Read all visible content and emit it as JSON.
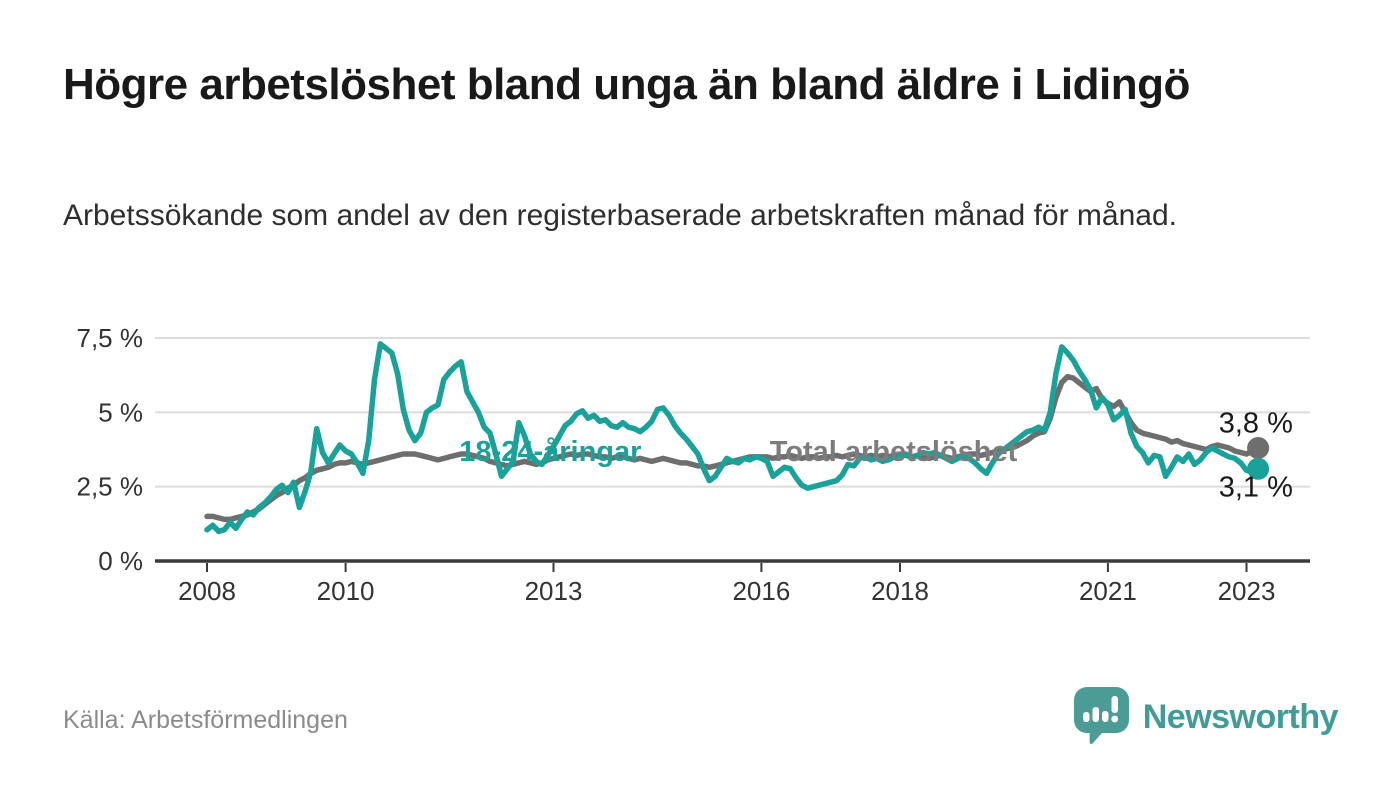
{
  "header": {
    "title": "Högre arbetslöshet bland unga än bland äldre i Lidingö",
    "subtitle": "Arbetssökande som andel av den registerbaserade arbetskraften månad för månad."
  },
  "footer": {
    "source": "Källa: Arbetsförmedlingen",
    "brand": "Newsworthy"
  },
  "colors": {
    "youth_line": "#18a29a",
    "total_line": "#6e6e6e",
    "total_label": "#7c7c7c",
    "value_label": "#1a1a1a",
    "grid": "#dcdcdc",
    "axis": "#3a3a3a",
    "tick_text": "#333333",
    "logo_bubble": "#4c9c96"
  },
  "chart_data": {
    "type": "line",
    "title": "Högre arbetslöshet bland unga än bland äldre i Lidingö",
    "subtitle": "Arbetssökande som andel av den registerbaserade arbetskraften månad för månad.",
    "unit": "%",
    "x_start_year": 2008,
    "x_step": "monthly",
    "xlim": [
      2007.25,
      2023.9
    ],
    "ylim": [
      0,
      7.5
    ],
    "grid": "horizontal",
    "legend_position": "inline-labels",
    "x_ticks": [
      2008,
      2010,
      2013,
      2016,
      2018,
      2021,
      2023
    ],
    "y_ticks": [
      {
        "value": 0,
        "label": "0 %"
      },
      {
        "value": 2.5,
        "label": "2,5 %"
      },
      {
        "value": 5,
        "label": "5 %"
      },
      {
        "value": 7.5,
        "label": "7,5 %"
      }
    ],
    "series": [
      {
        "name": "Total arbetslöshet",
        "color": "#6e6e6e",
        "end_label": "3,8 %",
        "end_value": 3.8,
        "values": [
          1.5,
          1.5,
          1.45,
          1.4,
          1.4,
          1.45,
          1.5,
          1.55,
          1.65,
          1.75,
          1.9,
          2.05,
          2.2,
          2.3,
          2.45,
          2.55,
          2.7,
          2.8,
          2.95,
          3.05,
          3.1,
          3.15,
          3.25,
          3.3,
          3.3,
          3.35,
          3.3,
          3.25,
          3.3,
          3.35,
          3.4,
          3.45,
          3.5,
          3.55,
          3.6,
          3.6,
          3.6,
          3.55,
          3.5,
          3.45,
          3.4,
          3.45,
          3.5,
          3.55,
          3.6,
          3.6,
          3.55,
          3.5,
          3.45,
          3.35,
          3.3,
          3.25,
          3.2,
          3.25,
          3.3,
          3.35,
          3.3,
          3.25,
          3.3,
          3.4,
          3.45,
          3.5,
          3.55,
          3.6,
          3.55,
          3.6,
          3.6,
          3.55,
          3.5,
          3.5,
          3.45,
          3.5,
          3.5,
          3.45,
          3.4,
          3.45,
          3.4,
          3.35,
          3.4,
          3.45,
          3.4,
          3.35,
          3.3,
          3.3,
          3.25,
          3.2,
          3.2,
          3.15,
          3.2,
          3.25,
          3.3,
          3.35,
          3.4,
          3.45,
          3.5,
          3.5,
          3.5,
          3.5,
          3.45,
          3.5,
          3.5,
          3.55,
          3.5,
          3.45,
          3.5,
          3.5,
          3.45,
          3.5,
          3.5,
          3.55,
          3.5,
          3.55,
          3.6,
          3.55,
          3.5,
          3.55,
          3.5,
          3.55,
          3.5,
          3.55,
          3.6,
          3.55,
          3.5,
          3.55,
          3.5,
          3.45,
          3.5,
          3.55,
          3.5,
          3.45,
          3.5,
          3.55,
          3.6,
          3.6,
          3.55,
          3.6,
          3.65,
          3.7,
          3.75,
          3.8,
          3.85,
          3.95,
          4.05,
          4.2,
          4.3,
          4.35,
          4.8,
          5.5,
          6.0,
          6.2,
          6.15,
          6.0,
          5.85,
          5.7,
          5.8,
          5.45,
          5.3,
          5.2,
          5.35,
          5.0,
          4.65,
          4.4,
          4.3,
          4.25,
          4.2,
          4.15,
          4.1,
          4.0,
          4.05,
          3.95,
          3.9,
          3.85,
          3.8,
          3.75,
          3.85,
          3.9,
          3.85,
          3.8,
          3.7,
          3.65,
          3.6,
          3.7,
          3.8
        ]
      },
      {
        "name": "18-24-åringar",
        "color": "#18a29a",
        "end_label": "3,1 %",
        "end_value": 3.1,
        "values": [
          1.05,
          1.2,
          1.0,
          1.05,
          1.3,
          1.1,
          1.4,
          1.65,
          1.55,
          1.8,
          1.95,
          2.15,
          2.4,
          2.55,
          2.3,
          2.65,
          1.8,
          2.35,
          3.0,
          4.45,
          3.65,
          3.3,
          3.6,
          3.9,
          3.7,
          3.6,
          3.3,
          2.95,
          4.05,
          6.1,
          7.3,
          7.15,
          7.0,
          6.3,
          5.1,
          4.4,
          4.05,
          4.3,
          5.0,
          5.15,
          5.25,
          6.1,
          6.35,
          6.55,
          6.7,
          5.7,
          5.35,
          5.0,
          4.5,
          4.3,
          3.6,
          2.85,
          3.1,
          3.35,
          4.65,
          4.2,
          3.6,
          3.35,
          3.25,
          3.55,
          3.85,
          4.2,
          4.55,
          4.7,
          4.95,
          5.05,
          4.8,
          4.9,
          4.7,
          4.75,
          4.55,
          4.5,
          4.65,
          4.5,
          4.45,
          4.35,
          4.5,
          4.7,
          5.1,
          5.15,
          4.9,
          4.55,
          4.3,
          4.1,
          3.85,
          3.6,
          3.1,
          2.7,
          2.85,
          3.15,
          3.45,
          3.35,
          3.3,
          3.45,
          3.4,
          3.5,
          3.45,
          3.35,
          2.85,
          3.0,
          3.15,
          3.1,
          2.8,
          2.55,
          2.45,
          2.5,
          2.55,
          2.6,
          2.65,
          2.7,
          2.9,
          3.25,
          3.2,
          3.45,
          3.5,
          3.4,
          3.45,
          3.35,
          3.4,
          3.5,
          3.55,
          3.6,
          3.45,
          3.55,
          3.65,
          3.6,
          3.65,
          3.55,
          3.45,
          3.35,
          3.45,
          3.5,
          3.45,
          3.3,
          3.1,
          2.95,
          3.3,
          3.6,
          3.75,
          3.9,
          4.05,
          4.2,
          4.35,
          4.4,
          4.5,
          4.4,
          5.0,
          6.3,
          7.2,
          7.0,
          6.75,
          6.4,
          6.1,
          5.75,
          5.15,
          5.5,
          5.25,
          4.75,
          4.9,
          5.1,
          4.3,
          3.85,
          3.65,
          3.3,
          3.55,
          3.5,
          2.85,
          3.15,
          3.5,
          3.35,
          3.6,
          3.25,
          3.4,
          3.65,
          3.8,
          3.7,
          3.6,
          3.5,
          3.45,
          3.3,
          3.05,
          3.0,
          3.1
        ]
      }
    ],
    "annotations": [
      {
        "text": "18-24-åringar",
        "x_year": 2011.64,
        "value": 3.36,
        "color": "#18a29a",
        "anchor": "start",
        "weight": "bold"
      },
      {
        "text": "Total arbetslöshet",
        "x_year": 2016.12,
        "value": 3.36,
        "color": "#7c7c7c",
        "anchor": "start",
        "weight": "bold"
      },
      {
        "text": "3,8 %",
        "x_year": 2023.67,
        "value": 4.32,
        "color": "#1a1a1a",
        "anchor": "end",
        "weight": "normal"
      },
      {
        "text": "3,1 %",
        "x_year": 2023.67,
        "value": 2.17,
        "color": "#1a1a1a",
        "anchor": "end",
        "weight": "normal"
      }
    ]
  }
}
